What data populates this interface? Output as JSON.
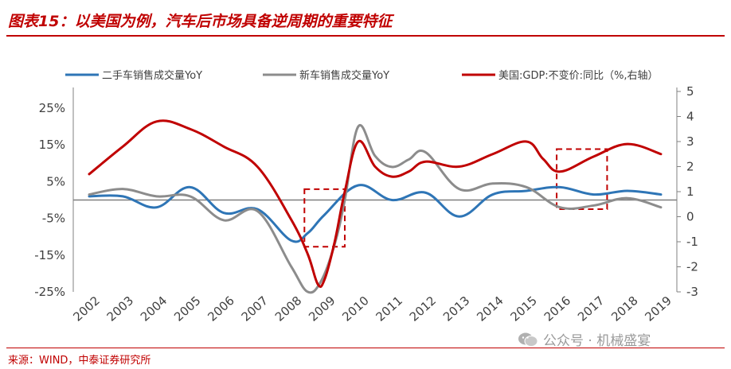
{
  "title": "图表15：以美国为例，汽车后市场具备逆周期的重要特征",
  "source": "来源：WIND，中泰证券研究所",
  "watermark": "公众号 · 机械盛宴",
  "colors": {
    "used_car": "#2e75b6",
    "new_car": "#8c8c8c",
    "gdp": "#c00000",
    "accent": "#c00000"
  },
  "chart_data": {
    "type": "line",
    "title": "",
    "xlabel": "",
    "ylabel": "",
    "categories": [
      "2002",
      "2003",
      "2004",
      "2005",
      "2006",
      "2007",
      "2008",
      "2009",
      "2010",
      "2011",
      "2012",
      "2013",
      "2014",
      "2015",
      "2016",
      "2017",
      "2018",
      "2019"
    ],
    "x": [
      2002,
      2003,
      2004,
      2005,
      2006,
      2007,
      2008,
      2009,
      2010,
      2011,
      2012,
      2013,
      2014,
      2015,
      2016,
      2017,
      2018,
      2019
    ],
    "legend_position": "top",
    "grid": false,
    "y_left": {
      "ticks": [
        "25%",
        "15%",
        "5%",
        "-5%",
        "-15%",
        "-25%"
      ],
      "range": [
        -25,
        25
      ],
      "unit": "%"
    },
    "y_right": {
      "ticks": [
        "5",
        "4",
        "3",
        "2",
        "1",
        "0",
        "-1",
        "-2",
        "-3"
      ],
      "range": [
        -3,
        5
      ]
    },
    "series": [
      {
        "name": "二手车销售成交量YoY",
        "axis": "left",
        "x": [
          2002,
          2003,
          2004,
          2005,
          2006,
          2007,
          2008,
          2008.5,
          2009,
          2010,
          2011,
          2012,
          2013,
          2014,
          2015,
          2016,
          2017,
          2018,
          2019
        ],
        "values": [
          1,
          1,
          -2,
          3.5,
          -3.5,
          -2.5,
          -11,
          -9,
          -4,
          4,
          0,
          2,
          -4.5,
          1.5,
          2.5,
          3.5,
          1.5,
          2.5,
          1.5
        ]
      },
      {
        "name": "新车销售成交量YoY",
        "axis": "left",
        "x": [
          2002,
          2003,
          2004,
          2005,
          2006,
          2007,
          2008,
          2008.5,
          2008.9,
          2009.3,
          2009.6,
          2010,
          2010.5,
          2011,
          2011.5,
          2012,
          2013,
          2014,
          2015,
          2016,
          2017,
          2018,
          2019
        ],
        "values": [
          1.5,
          3,
          1,
          1,
          -5.5,
          -3,
          -18,
          -25,
          -22,
          -12,
          0,
          20,
          12,
          9,
          11,
          13,
          3,
          4.5,
          3.5,
          -2,
          -1.5,
          0.5,
          -2
        ]
      },
      {
        "name": "美国:GDP:不变价:同比（%,右轴）",
        "axis": "right",
        "x": [
          2002,
          2003,
          2004,
          2005,
          2006,
          2007,
          2008,
          2008.5,
          2008.8,
          2009,
          2009.3,
          2009.6,
          2010,
          2010.5,
          2011,
          2011.5,
          2012,
          2013,
          2014,
          2015,
          2015.5,
          2016,
          2017,
          2018,
          2019
        ],
        "values": [
          1.7,
          2.8,
          3.8,
          3.5,
          2.8,
          2,
          -0.1,
          -1.5,
          -2.7,
          -2.5,
          -1,
          1,
          3,
          2,
          1.6,
          1.8,
          2.2,
          2,
          2.5,
          3,
          2.3,
          1.8,
          2.4,
          2.9,
          2.5
        ]
      }
    ],
    "annotations": [
      {
        "type": "dashed-box",
        "x_range": [
          2008.4,
          2009.6
        ],
        "y_right_range": [
          -1.2,
          1.1
        ]
      },
      {
        "type": "dashed-box",
        "x_range": [
          2015.9,
          2017.4
        ],
        "y_right_range": [
          0.3,
          2.7
        ]
      }
    ]
  }
}
